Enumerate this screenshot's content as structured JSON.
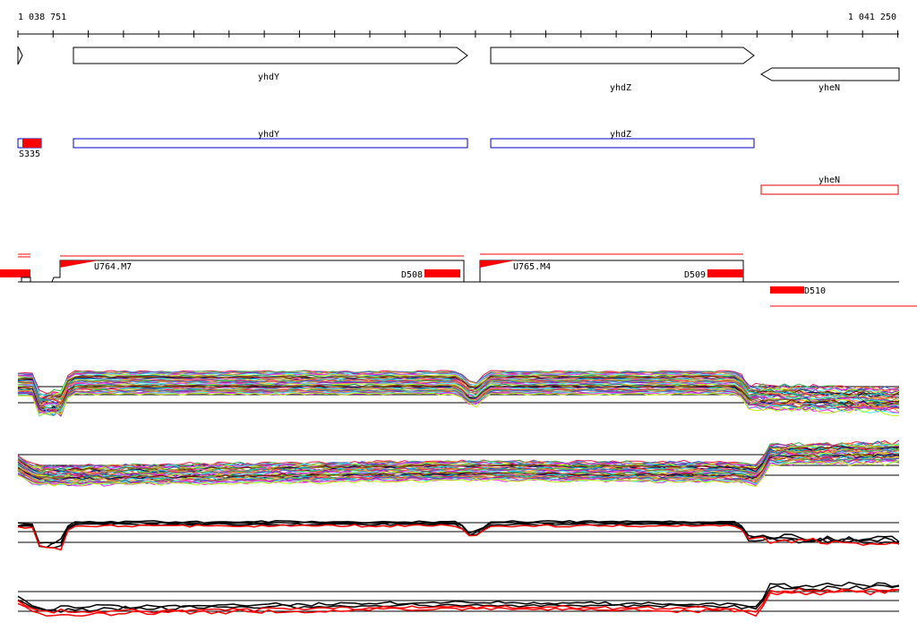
{
  "ruler": {
    "start_label": "1 038 751",
    "end_label": "1 041 250"
  },
  "genes": [
    {
      "name": "",
      "strand": "+"
    },
    {
      "name": "yhdY",
      "strand": "+"
    },
    {
      "name": "yhdZ",
      "strand": "+"
    },
    {
      "name": "yheN",
      "strand": "-"
    }
  ],
  "cds_boxes": [
    {
      "name": "yhdY",
      "color": "#0000cc"
    },
    {
      "name": "yhdZ",
      "color": "#0000cc"
    },
    {
      "name": "yheN",
      "color": "#dd0000"
    }
  ],
  "features": [
    {
      "label": "S335"
    },
    {
      "label": "U764.M7"
    },
    {
      "label": "D508"
    },
    {
      "label": "U765.M4"
    },
    {
      "label": "D509"
    },
    {
      "label": "D510"
    }
  ],
  "colors": {
    "feature_red": "#ff0000",
    "gene_outline": "#000000",
    "cds_blue": "#0000cc",
    "cds_red": "#dd0000",
    "highlight_red": "#ff0000",
    "reference_black": "#000000"
  },
  "expression_palette": [
    "#e6194b",
    "#3cb44b",
    "#4363d8",
    "#f58231",
    "#911eb4",
    "#46f0f0",
    "#f032e6",
    "#bcf60c",
    "#008080",
    "#9a6324",
    "#800000",
    "#808000",
    "#000075",
    "#ff69b4",
    "#00ced1",
    "#daa520"
  ]
}
